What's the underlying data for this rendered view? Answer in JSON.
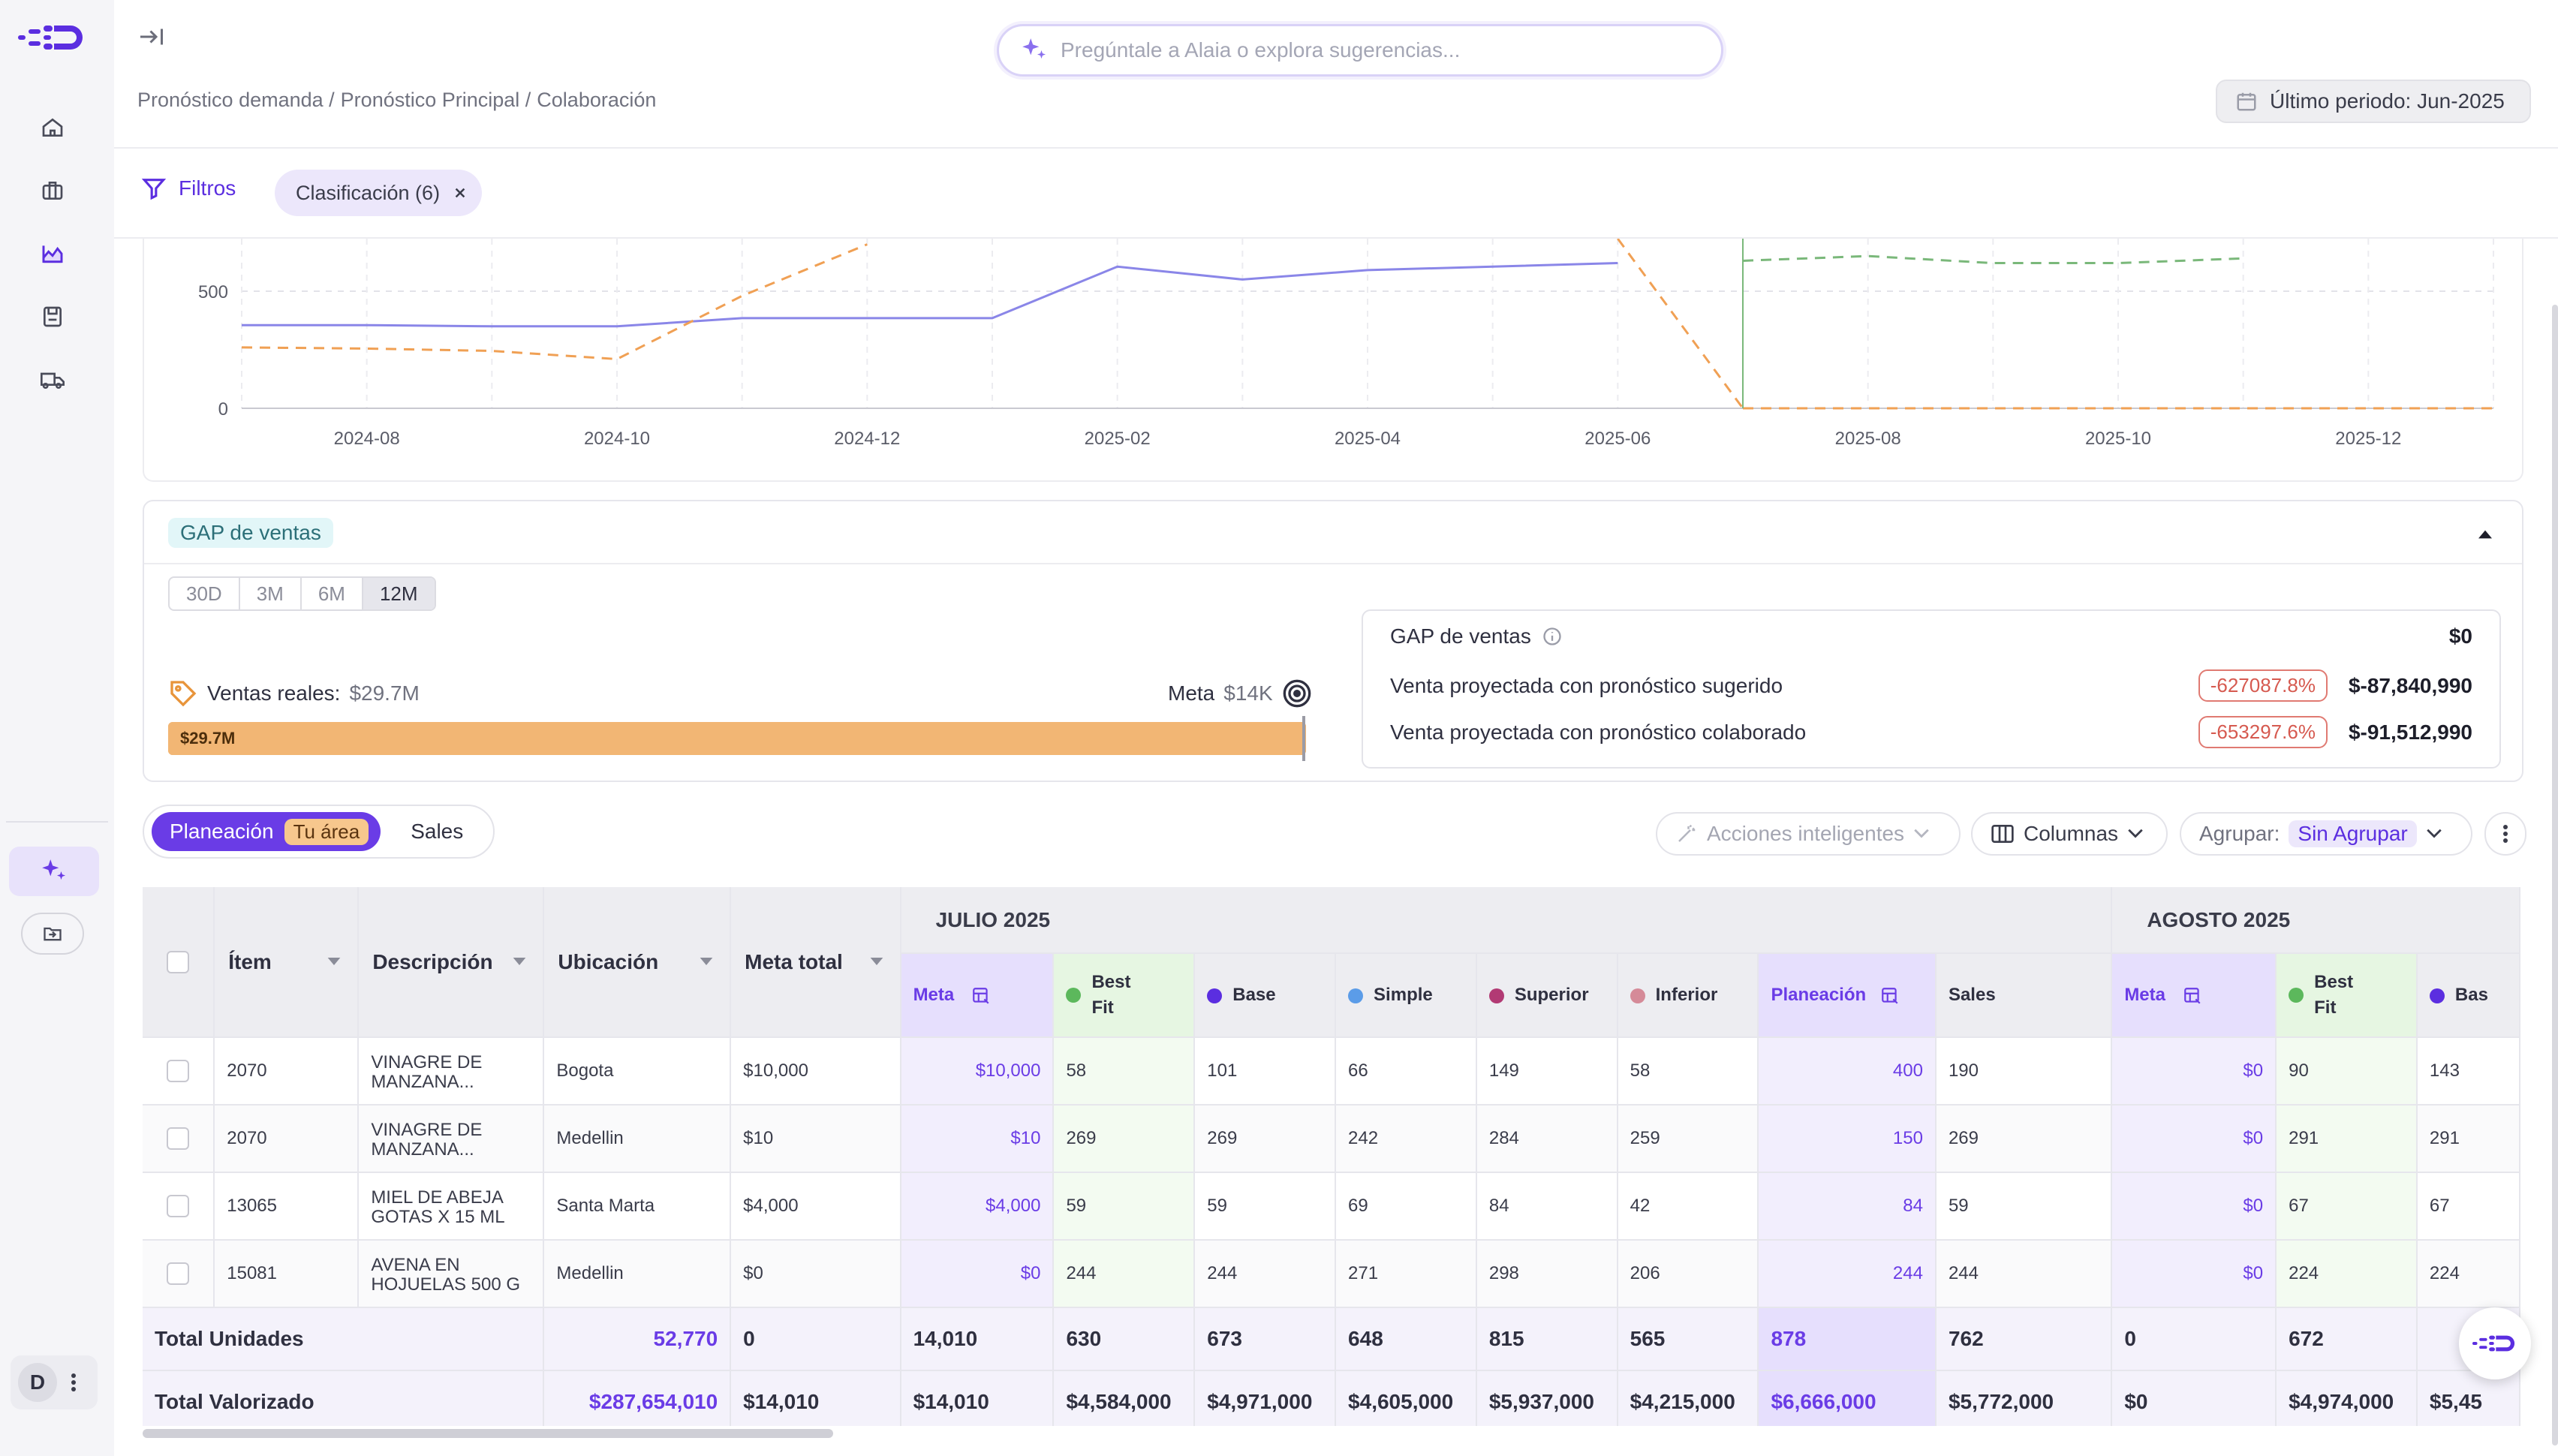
{
  "search": {
    "placeholder": "Pregúntale a Alaia o explora sugerencias..."
  },
  "breadcrumb": [
    "Pronóstico demanda /",
    "Pronóstico Principal /",
    "Colaboración"
  ],
  "period": {
    "label": "Último periodo: Jun-2025"
  },
  "filters": {
    "label": "Filtros",
    "chip": "Clasificación (6)"
  },
  "chart_data": {
    "type": "line",
    "x": [
      "2024-07",
      "2024-08",
      "2024-09",
      "2024-10",
      "2024-11",
      "2024-12",
      "2025-01",
      "2025-02",
      "2025-03",
      "2025-04",
      "2025-05",
      "2025-06",
      "2025-07",
      "2025-08",
      "2025-09",
      "2025-10",
      "2025-11",
      "2025-12",
      "2026-01"
    ],
    "x_ticks": [
      "2024-08",
      "2024-10",
      "2024-12",
      "2025-02",
      "2025-04",
      "2025-06",
      "2025-08",
      "2025-10",
      "2025-12"
    ],
    "y_ticks": [
      "500",
      "0"
    ],
    "ylim": [
      0,
      650
    ],
    "series": [
      {
        "color": "#8a86e8",
        "dash": "solid",
        "values": [
          355,
          355,
          350,
          350,
          385,
          385,
          385,
          605,
          550,
          590,
          605,
          620,
          null,
          null,
          null,
          null,
          null,
          null,
          null
        ]
      },
      {
        "color": "#f0a054",
        "dash": "dashed",
        "values": [
          260,
          255,
          245,
          210,
          480,
          700,
          null,
          null,
          null,
          null,
          null,
          null,
          0,
          0,
          0,
          0,
          0,
          0,
          0
        ]
      },
      {
        "color": "#7ab87a",
        "dash": "dashed",
        "values": [
          null,
          null,
          null,
          null,
          null,
          null,
          null,
          null,
          null,
          null,
          null,
          null,
          630,
          650,
          620,
          620,
          640,
          null,
          null
        ]
      }
    ]
  },
  "gap": {
    "tag": "GAP de ventas",
    "ranges": [
      "30D",
      "3M",
      "6M",
      "12M"
    ],
    "reales_label": "Ventas reales:",
    "reales_value": "$29.7M",
    "meta_label": "Meta",
    "meta_value": "$14K",
    "bar_label": "$29.7M",
    "box": {
      "title": "GAP de ventas",
      "title_value": "$0",
      "row1_label": "Venta proyectada con pronóstico sugerido",
      "row1_pct": "-627087.8%",
      "row1_value": "$-87,840,990",
      "row2_label": "Venta proyectada con pronóstico colaborado",
      "row2_pct": "-653297.6%",
      "row2_value": "$-91,512,990"
    }
  },
  "view": {
    "planeacion": "Planeación",
    "badge": "Tu área",
    "sales": "Sales"
  },
  "toolbar": {
    "acciones": "Acciones inteligentes",
    "columnas": "Columnas",
    "agrupar": "Agrupar:",
    "agrupar_value": "Sin Agrupar"
  },
  "table": {
    "headers": {
      "item": "Ítem",
      "descripcion": "Descripción",
      "ubicacion": "Ubicación",
      "meta_total": "Meta total"
    },
    "months": [
      "JULIO 2025",
      "AGOSTO 2025"
    ],
    "sub": {
      "meta": "Meta",
      "best": "Best Fit",
      "base": "Base",
      "simple": "Simple",
      "superior": "Superior",
      "inferior": "Inferior",
      "planeacion": "Planeación",
      "sales": "Sales",
      "base_cut": "Bas"
    },
    "rows": [
      {
        "item": "2070",
        "desc": "VINAGRE DE MANZANA...",
        "ubic": "Bogota",
        "meta_total": "$10,000",
        "jul": [
          "$10,000",
          "58",
          "101",
          "66",
          "149",
          "58",
          "400",
          "190"
        ],
        "ago": [
          "$0",
          "90",
          "143"
        ]
      },
      {
        "item": "2070",
        "desc": "VINAGRE DE MANZANA...",
        "ubic": "Medellin",
        "meta_total": "$10",
        "jul": [
          "$10",
          "269",
          "269",
          "242",
          "284",
          "259",
          "150",
          "269"
        ],
        "ago": [
          "$0",
          "291",
          "291"
        ]
      },
      {
        "item": "13065",
        "desc": "MIEL DE ABEJA GOTAS X 15 ML",
        "ubic": "Santa Marta",
        "meta_total": "$4,000",
        "jul": [
          "$4,000",
          "59",
          "59",
          "69",
          "84",
          "42",
          "84",
          "59"
        ],
        "ago": [
          "$0",
          "67",
          "67"
        ]
      },
      {
        "item": "15081",
        "desc": "AVENA EN HOJUELAS 500 G",
        "ubic": "Medellin",
        "meta_total": "$0",
        "jul": [
          "$0",
          "244",
          "244",
          "271",
          "298",
          "206",
          "244",
          "244"
        ],
        "ago": [
          "$0",
          "224",
          "224"
        ]
      }
    ],
    "total_unidades": {
      "label": "Total Unidades",
      "a": "52,770",
      "b": "0",
      "jul": [
        "14,010",
        "630",
        "673",
        "648",
        "815",
        "565",
        "878",
        "762"
      ],
      "ago": [
        "0",
        "672",
        ""
      ]
    },
    "total_valorizado": {
      "label": "Total Valorizado",
      "a": "$287,654,010",
      "b": "$14,010",
      "jul": [
        "$14,010",
        "$4,584,000",
        "$4,971,000",
        "$4,605,000",
        "$5,937,000",
        "$4,215,000",
        "$6,666,000",
        "$5,772,000"
      ],
      "ago": [
        "$0",
        "$4,974,000",
        "$5,45"
      ]
    }
  },
  "user": {
    "initial": "D"
  },
  "colors": {
    "accent": "#6a3ce6",
    "orange": "#f2b674",
    "danger": "#d65a50"
  }
}
